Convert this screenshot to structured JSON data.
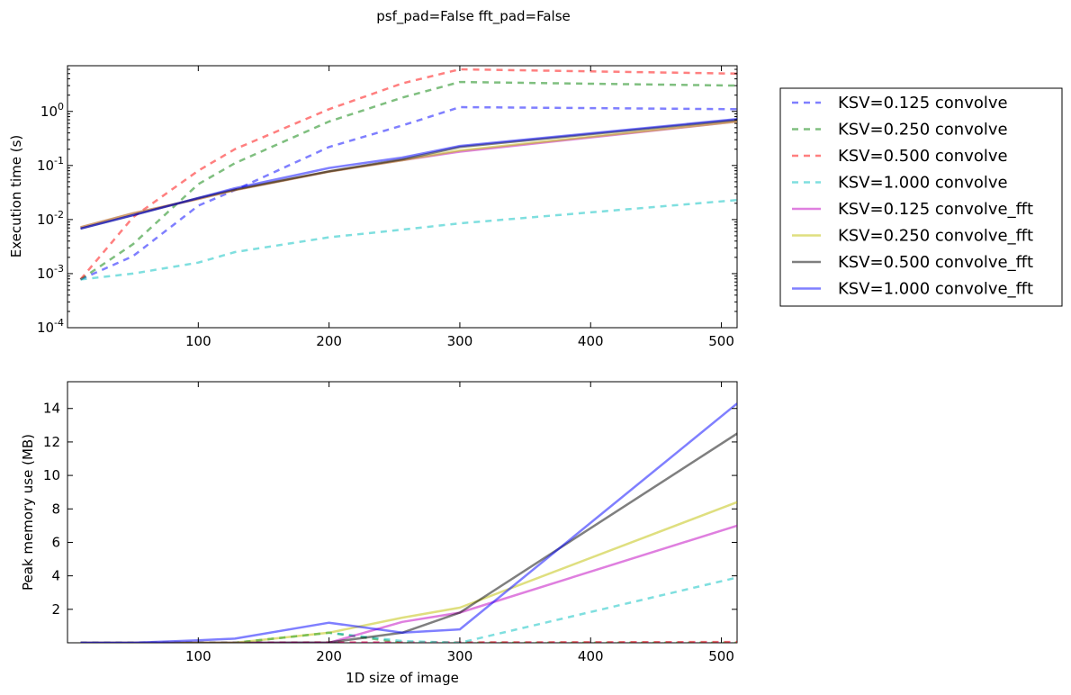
{
  "figure_title": "psf_pad=False fft_pad=False",
  "series_colors": {
    "ksv_0125": "#0000ff",
    "ksv_0250": "#008000",
    "ksv_0500": "#ff0000",
    "ksv_1000": "#00bfbf",
    "fft_0125": "#bf00bf",
    "fft_0250": "#bfbf00",
    "fft_0500": "#000000",
    "fft_1000": "#0000ff"
  },
  "legend": {
    "placement": "right, outside axes",
    "entries": [
      {
        "label": "KSV=0.125 convolve",
        "color": "#0000ff",
        "style": "dashed"
      },
      {
        "label": "KSV=0.250 convolve",
        "color": "#008000",
        "style": "dashed"
      },
      {
        "label": "KSV=0.500 convolve",
        "color": "#ff0000",
        "style": "dashed"
      },
      {
        "label": "KSV=1.000 convolve",
        "color": "#00bfbf",
        "style": "dashed"
      },
      {
        "label": "KSV=0.125 convolve_fft",
        "color": "#bf00bf",
        "style": "solid"
      },
      {
        "label": "KSV=0.250 convolve_fft",
        "color": "#bfbf00",
        "style": "solid"
      },
      {
        "label": "KSV=0.500 convolve_fft",
        "color": "#000000",
        "style": "solid"
      },
      {
        "label": "KSV=1.000 convolve_fft",
        "color": "#0000ff",
        "style": "solid"
      }
    ]
  },
  "chart_data": [
    {
      "type": "line",
      "title": "",
      "xlabel": "",
      "ylabel": "Execution time (s)",
      "yscale": "log",
      "xlim": [
        0,
        512
      ],
      "ylim": [
        0.0001,
        7
      ],
      "xticks": [
        100,
        200,
        300,
        400,
        500
      ],
      "xtick_labels": [
        "100",
        "200",
        "300",
        "400",
        "500"
      ],
      "yticks": [
        0.0001,
        0.001,
        0.01,
        0.1,
        1
      ],
      "ytick_labels": [
        {
          "base": "10",
          "exp": "-4"
        },
        {
          "base": "10",
          "exp": "-3"
        },
        {
          "base": "10",
          "exp": "-2"
        },
        {
          "base": "10",
          "exp": "-1"
        },
        {
          "base": "10",
          "exp": "0"
        }
      ],
      "grid": false,
      "x": [
        10,
        50,
        100,
        128,
        200,
        256,
        300,
        512
      ],
      "series": [
        {
          "name": "KSV=0.125 convolve",
          "color": "#0000ff",
          "style": "dashed",
          "values": [
            0.00078,
            0.0021,
            0.018,
            0.035,
            0.22,
            0.55,
            1.2,
            1.1
          ]
        },
        {
          "name": "KSV=0.250 convolve",
          "color": "#008000",
          "style": "dashed",
          "values": [
            0.00078,
            0.0035,
            0.045,
            0.11,
            0.65,
            1.8,
            3.5,
            3.0
          ]
        },
        {
          "name": "KSV=0.500 convolve",
          "color": "#ff0000",
          "style": "dashed",
          "values": [
            0.00078,
            0.011,
            0.08,
            0.2,
            1.1,
            3.3,
            6.0,
            5.0
          ]
        },
        {
          "name": "KSV=1.000 convolve",
          "color": "#00bfbf",
          "style": "dashed",
          "values": [
            0.00078,
            0.001,
            0.0016,
            0.0025,
            0.0047,
            0.0065,
            0.0085,
            0.023
          ]
        },
        {
          "name": "KSV=0.125 convolve_fft",
          "color": "#bf00bf",
          "style": "solid",
          "values": [
            0.0072,
            0.013,
            0.024,
            0.035,
            0.077,
            0.125,
            0.18,
            0.65
          ]
        },
        {
          "name": "KSV=0.250 convolve_fft",
          "color": "#bfbf00",
          "style": "solid",
          "values": [
            0.0072,
            0.013,
            0.024,
            0.035,
            0.077,
            0.125,
            0.19,
            0.65
          ]
        },
        {
          "name": "KSV=0.500 convolve_fft",
          "color": "#000000",
          "style": "solid",
          "values": [
            0.0068,
            0.012,
            0.025,
            0.036,
            0.078,
            0.13,
            0.22,
            0.7
          ]
        },
        {
          "name": "KSV=1.000 convolve_fft",
          "color": "#0000ff",
          "style": "solid",
          "values": [
            0.0068,
            0.012,
            0.025,
            0.038,
            0.09,
            0.14,
            0.23,
            0.72
          ]
        }
      ]
    },
    {
      "type": "line",
      "title": "",
      "xlabel": "1D size of image",
      "ylabel": "Peak memory use (MB)",
      "yscale": "linear",
      "xlim": [
        0,
        512
      ],
      "ylim": [
        0,
        15.6
      ],
      "xticks": [
        100,
        200,
        300,
        400,
        500
      ],
      "xtick_labels": [
        "100",
        "200",
        "300",
        "400",
        "500"
      ],
      "yticks": [
        2,
        4,
        6,
        8,
        10,
        12,
        14
      ],
      "ytick_labels": [
        "2",
        "4",
        "6",
        "8",
        "10",
        "12",
        "14"
      ],
      "grid": false,
      "x": [
        10,
        50,
        100,
        128,
        200,
        256,
        300,
        512
      ],
      "series": [
        {
          "name": "KSV=0.125 convolve",
          "color": "#0000ff",
          "style": "dashed",
          "values": [
            0,
            0,
            0,
            0,
            0,
            0,
            0,
            0
          ]
        },
        {
          "name": "KSV=0.250 convolve",
          "color": "#008000",
          "style": "dashed",
          "values": [
            0,
            0,
            0,
            0,
            0.6,
            0,
            0,
            0
          ]
        },
        {
          "name": "KSV=0.500 convolve",
          "color": "#ff0000",
          "style": "dashed",
          "values": [
            0,
            0,
            0,
            0,
            0.02,
            0.02,
            0.02,
            0.05
          ]
        },
        {
          "name": "KSV=1.000 convolve",
          "color": "#00bfbf",
          "style": "dashed",
          "values": [
            0,
            0,
            0,
            0,
            0.6,
            0.1,
            0,
            3.9
          ]
        },
        {
          "name": "KSV=0.125 convolve_fft",
          "color": "#bf00bf",
          "style": "solid",
          "values": [
            0,
            0,
            0,
            0,
            0,
            1.25,
            1.8,
            7.0
          ]
        },
        {
          "name": "KSV=0.250 convolve_fft",
          "color": "#bfbf00",
          "style": "solid",
          "values": [
            0,
            0,
            0,
            0,
            0.6,
            1.5,
            2.1,
            8.4
          ]
        },
        {
          "name": "KSV=0.500 convolve_fft",
          "color": "#000000",
          "style": "solid",
          "values": [
            0,
            0,
            0,
            0,
            0.02,
            0.6,
            1.8,
            12.5
          ]
        },
        {
          "name": "KSV=1.000 convolve_fft",
          "color": "#0000ff",
          "style": "solid",
          "values": [
            0,
            0,
            0.15,
            0.25,
            1.2,
            0.6,
            0.8,
            14.3
          ]
        }
      ]
    }
  ]
}
